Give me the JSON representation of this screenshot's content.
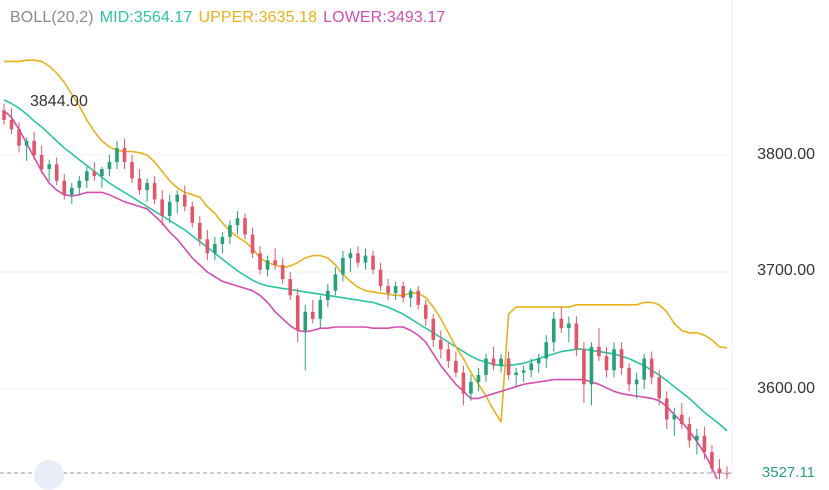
{
  "indicator": {
    "name": "BOLL(20,2)",
    "mid_label": "MID:3564.17",
    "upper_label": "UPPER:3635.18",
    "lower_label": "LOWER:3493.17",
    "colors": {
      "name": "#8a8a8a",
      "mid": "#2ec4a0",
      "upper": "#e8b21e",
      "lower": "#d24fb0"
    }
  },
  "price_axis": {
    "labels": [
      "3800.00",
      "3700.00",
      "3600.00"
    ],
    "values": [
      3800,
      3700,
      3600
    ]
  },
  "high_label": "3844.00",
  "last_price_label": "3527.11",
  "colors": {
    "up": "#26a17b",
    "down": "#e0566a",
    "grid": "#f0f0f0"
  },
  "chart_data": {
    "type": "candlestick",
    "y_axis_ticks": [
      3800,
      3700,
      3600
    ],
    "y_visible_range": [
      3510,
      3880
    ],
    "grid": true,
    "annotations": {
      "high": 3844.0,
      "last": 3527.11
    },
    "candles_ohlc": [
      [
        3838,
        3844,
        3826,
        3830
      ],
      [
        3830,
        3840,
        3818,
        3822
      ],
      [
        3822,
        3828,
        3802,
        3808
      ],
      [
        3808,
        3815,
        3795,
        3812
      ],
      [
        3812,
        3820,
        3796,
        3800
      ],
      [
        3800,
        3808,
        3784,
        3788
      ],
      [
        3788,
        3796,
        3778,
        3792
      ],
      [
        3792,
        3798,
        3774,
        3778
      ],
      [
        3778,
        3784,
        3762,
        3766
      ],
      [
        3766,
        3776,
        3758,
        3772
      ],
      [
        3772,
        3782,
        3766,
        3778
      ],
      [
        3778,
        3790,
        3772,
        3786
      ],
      [
        3786,
        3794,
        3778,
        3782
      ],
      [
        3782,
        3790,
        3772,
        3788
      ],
      [
        3788,
        3800,
        3782,
        3794
      ],
      [
        3794,
        3812,
        3788,
        3806
      ],
      [
        3806,
        3814,
        3788,
        3794
      ],
      [
        3794,
        3800,
        3776,
        3780
      ],
      [
        3780,
        3788,
        3766,
        3770
      ],
      [
        3770,
        3780,
        3760,
        3776
      ],
      [
        3776,
        3782,
        3758,
        3762
      ],
      [
        3762,
        3770,
        3740,
        3748
      ],
      [
        3748,
        3766,
        3742,
        3760
      ],
      [
        3760,
        3770,
        3750,
        3766
      ],
      [
        3766,
        3774,
        3752,
        3756
      ],
      [
        3756,
        3760,
        3738,
        3742
      ],
      [
        3742,
        3748,
        3722,
        3728
      ],
      [
        3728,
        3736,
        3710,
        3716
      ],
      [
        3716,
        3730,
        3710,
        3724
      ],
      [
        3724,
        3734,
        3716,
        3730
      ],
      [
        3730,
        3744,
        3724,
        3740
      ],
      [
        3740,
        3752,
        3732,
        3746
      ],
      [
        3746,
        3750,
        3728,
        3732
      ],
      [
        3732,
        3738,
        3712,
        3716
      ],
      [
        3716,
        3722,
        3698,
        3702
      ],
      [
        3702,
        3714,
        3696,
        3710
      ],
      [
        3710,
        3720,
        3702,
        3706
      ],
      [
        3706,
        3712,
        3690,
        3694
      ],
      [
        3694,
        3700,
        3676,
        3680
      ],
      [
        3680,
        3686,
        3640,
        3650
      ],
      [
        3650,
        3672,
        3616,
        3666
      ],
      [
        3666,
        3676,
        3656,
        3660
      ],
      [
        3660,
        3680,
        3652,
        3676
      ],
      [
        3676,
        3690,
        3670,
        3684
      ],
      [
        3684,
        3704,
        3680,
        3698
      ],
      [
        3698,
        3718,
        3692,
        3712
      ],
      [
        3712,
        3720,
        3700,
        3716
      ],
      [
        3716,
        3722,
        3704,
        3708
      ],
      [
        3708,
        3720,
        3702,
        3714
      ],
      [
        3714,
        3718,
        3698,
        3702
      ],
      [
        3702,
        3708,
        3684,
        3688
      ],
      [
        3688,
        3694,
        3676,
        3682
      ],
      [
        3682,
        3692,
        3676,
        3688
      ],
      [
        3688,
        3692,
        3674,
        3678
      ],
      [
        3678,
        3686,
        3670,
        3684
      ],
      [
        3684,
        3688,
        3668,
        3672
      ],
      [
        3672,
        3676,
        3654,
        3660
      ],
      [
        3660,
        3664,
        3636,
        3642
      ],
      [
        3642,
        3650,
        3626,
        3634
      ],
      [
        3634,
        3640,
        3618,
        3624
      ],
      [
        3624,
        3632,
        3610,
        3614
      ],
      [
        3614,
        3620,
        3586,
        3596
      ],
      [
        3596,
        3612,
        3590,
        3606
      ],
      [
        3606,
        3618,
        3598,
        3612
      ],
      [
        3612,
        3630,
        3606,
        3626
      ],
      [
        3626,
        3636,
        3616,
        3620
      ],
      [
        3620,
        3630,
        3614,
        3626
      ],
      [
        3626,
        3632,
        3608,
        3612
      ],
      [
        3612,
        3618,
        3602,
        3614
      ],
      [
        3614,
        3620,
        3606,
        3616
      ],
      [
        3616,
        3626,
        3610,
        3622
      ],
      [
        3622,
        3630,
        3614,
        3626
      ],
      [
        3626,
        3646,
        3618,
        3640
      ],
      [
        3640,
        3666,
        3632,
        3660
      ],
      [
        3660,
        3670,
        3648,
        3652
      ],
      [
        3652,
        3662,
        3640,
        3656
      ],
      [
        3656,
        3662,
        3628,
        3634
      ],
      [
        3634,
        3640,
        3588,
        3604
      ],
      [
        3604,
        3640,
        3586,
        3636
      ],
      [
        3636,
        3652,
        3624,
        3628
      ],
      [
        3628,
        3636,
        3610,
        3616
      ],
      [
        3616,
        3640,
        3610,
        3634
      ],
      [
        3634,
        3640,
        3612,
        3618
      ],
      [
        3618,
        3622,
        3598,
        3604
      ],
      [
        3604,
        3614,
        3592,
        3608
      ],
      [
        3608,
        3630,
        3600,
        3626
      ],
      [
        3626,
        3632,
        3604,
        3610
      ],
      [
        3610,
        3616,
        3586,
        3592
      ],
      [
        3592,
        3598,
        3566,
        3574
      ],
      [
        3574,
        3584,
        3560,
        3578
      ],
      [
        3578,
        3588,
        3566,
        3570
      ],
      [
        3570,
        3576,
        3550,
        3556
      ],
      [
        3556,
        3566,
        3544,
        3560
      ],
      [
        3560,
        3568,
        3540,
        3546
      ],
      [
        3546,
        3552,
        3528,
        3532
      ],
      [
        3532,
        3540,
        3522,
        3528
      ],
      [
        3528,
        3534,
        3518,
        3527.11
      ]
    ],
    "series": [
      {
        "name": "MID",
        "values": [
          3847,
          3844,
          3840,
          3835,
          3829,
          3824,
          3818,
          3812,
          3806,
          3801,
          3796,
          3791,
          3786,
          3781,
          3776,
          3772,
          3768,
          3764,
          3760,
          3756,
          3752,
          3748,
          3744,
          3740,
          3736,
          3731,
          3726,
          3721,
          3716,
          3711,
          3706,
          3701,
          3697,
          3693,
          3690,
          3688,
          3687,
          3686,
          3685,
          3684,
          3683,
          3682,
          3681,
          3680,
          3679,
          3678,
          3677,
          3676,
          3675,
          3674,
          3672,
          3670,
          3667,
          3664,
          3660,
          3656,
          3652,
          3648,
          3644,
          3640,
          3636,
          3632,
          3628,
          3625,
          3623,
          3621,
          3620,
          3620,
          3621,
          3622,
          3624,
          3626,
          3628,
          3630,
          3632,
          3633,
          3634,
          3634,
          3633,
          3632,
          3631,
          3630,
          3628,
          3626,
          3623,
          3620,
          3616,
          3612,
          3607,
          3602,
          3597,
          3592,
          3586,
          3580,
          3575,
          3570,
          3564.17
        ]
      },
      {
        "name": "UPPER",
        "values": [
          3880,
          3880,
          3880,
          3881,
          3881,
          3880,
          3876,
          3870,
          3862,
          3852,
          3842,
          3830,
          3820,
          3812,
          3807,
          3804,
          3803,
          3803,
          3802,
          3800,
          3794,
          3786,
          3778,
          3772,
          3768,
          3766,
          3764,
          3756,
          3750,
          3742,
          3735,
          3730,
          3726,
          3720,
          3712,
          3708,
          3706,
          3704,
          3705,
          3708,
          3712,
          3714,
          3714,
          3712,
          3706,
          3698,
          3692,
          3687,
          3684,
          3683,
          3682,
          3681,
          3680,
          3680,
          3682,
          3682,
          3678,
          3670,
          3660,
          3648,
          3636,
          3626,
          3614,
          3604,
          3594,
          3582,
          3572,
          3664,
          3670,
          3670,
          3670,
          3670,
          3670,
          3670,
          3670,
          3670,
          3672,
          3672,
          3672,
          3672,
          3672,
          3672,
          3672,
          3672,
          3672,
          3674,
          3674,
          3672,
          3666,
          3656,
          3650,
          3648,
          3648,
          3646,
          3642,
          3636,
          3635.18
        ]
      },
      {
        "name": "LOWER",
        "values": [
          3838,
          3832,
          3822,
          3810,
          3798,
          3786,
          3776,
          3770,
          3766,
          3765,
          3766,
          3768,
          3768,
          3768,
          3766,
          3763,
          3760,
          3758,
          3756,
          3754,
          3748,
          3742,
          3734,
          3728,
          3720,
          3712,
          3706,
          3700,
          3696,
          3692,
          3690,
          3688,
          3686,
          3684,
          3680,
          3674,
          3666,
          3660,
          3654,
          3650,
          3649,
          3650,
          3652,
          3652,
          3653,
          3653,
          3653,
          3653,
          3653,
          3652,
          3652,
          3652,
          3653,
          3653,
          3650,
          3646,
          3640,
          3630,
          3620,
          3612,
          3604,
          3598,
          3592,
          3592,
          3594,
          3596,
          3598,
          3600,
          3602,
          3604,
          3605,
          3606,
          3607,
          3608,
          3608,
          3608,
          3608,
          3608,
          3606,
          3604,
          3601,
          3598,
          3596,
          3595,
          3594,
          3593,
          3592,
          3590,
          3585,
          3578,
          3572,
          3564,
          3555,
          3545,
          3533,
          3518,
          3493.17
        ]
      }
    ]
  }
}
